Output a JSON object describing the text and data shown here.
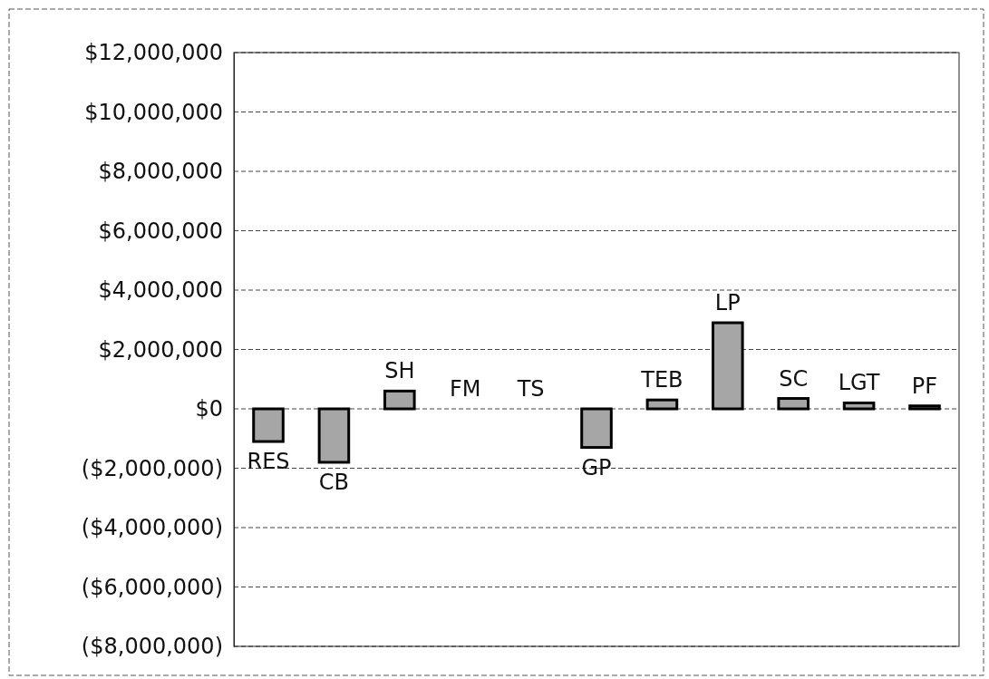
{
  "chart_data": {
    "type": "bar",
    "categories": [
      "RES",
      "CB",
      "SH",
      "FM",
      "TS",
      "GP",
      "TEB",
      "LP",
      "SC",
      "LGT",
      "PF"
    ],
    "values": [
      -1100000,
      -1800000,
      600000,
      0,
      0,
      -1300000,
      300000,
      2900000,
      350000,
      200000,
      100000
    ],
    "color": "#a6a6a6",
    "ylim": [
      -8000000,
      12000000
    ],
    "yticks": [
      {
        "value": -8000000,
        "label": "($8,000,000)"
      },
      {
        "value": -6000000,
        "label": "($6,000,000)"
      },
      {
        "value": -4000000,
        "label": "($4,000,000)"
      },
      {
        "value": -2000000,
        "label": "($2,000,000)"
      },
      {
        "value": 0,
        "label": "$0"
      },
      {
        "value": 2000000,
        "label": "$2,000,000"
      },
      {
        "value": 4000000,
        "label": "$4,000,000"
      },
      {
        "value": 6000000,
        "label": "$6,000,000"
      },
      {
        "value": 8000000,
        "label": "$8,000,000"
      },
      {
        "value": 10000000,
        "label": "$10,000,000"
      },
      {
        "value": 12000000,
        "label": "$12,000,000"
      }
    ],
    "grid": "y"
  }
}
